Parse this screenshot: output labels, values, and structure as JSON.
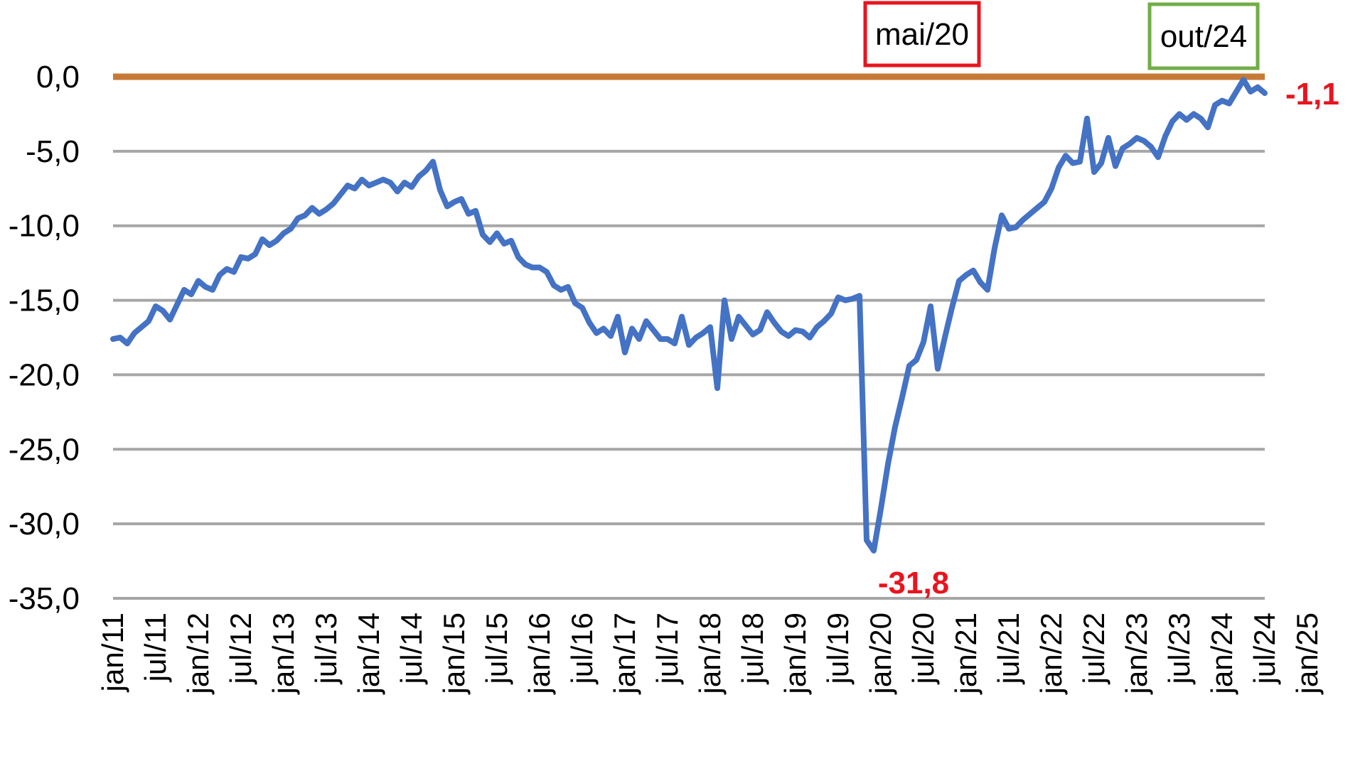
{
  "chart_data": {
    "type": "line",
    "title": "",
    "xlabel": "",
    "ylabel": "",
    "ylim": [
      -35,
      0
    ],
    "yticks": [
      "0,0",
      "-5,0",
      "-10,0",
      "-15,0",
      "-20,0",
      "-25,0",
      "-30,0",
      "-35,0"
    ],
    "ytick_values": [
      0,
      -5,
      -10,
      -15,
      -20,
      -25,
      -30,
      -35
    ],
    "xticks": [
      "jan/11",
      "jul/11",
      "jan/12",
      "jul/12",
      "jan/13",
      "jul/13",
      "jan/14",
      "jul/14",
      "jan/15",
      "jul/15",
      "jan/16",
      "jul/16",
      "jan/17",
      "jul/17",
      "jan/18",
      "jul/18",
      "jan/19",
      "jul/19",
      "jan/20",
      "jul/20",
      "jan/21",
      "jul/21",
      "jan/22",
      "jul/22",
      "jan/23",
      "jul/23",
      "jan/24",
      "jul/24",
      "jan/25"
    ],
    "grid": true,
    "start_period": "jan/11",
    "frequency": "monthly",
    "reference_line": {
      "value": 0,
      "color": "#c67a35"
    },
    "series": [
      {
        "name": "",
        "color": "#4472c4",
        "values": [
          -17.6,
          -17.5,
          -17.9,
          -17.2,
          -16.8,
          -16.4,
          -15.4,
          -15.7,
          -16.3,
          -15.3,
          -14.3,
          -14.6,
          -13.7,
          -14.1,
          -14.3,
          -13.3,
          -12.9,
          -13.1,
          -12.1,
          -12.2,
          -11.9,
          -10.9,
          -11.3,
          -11.0,
          -10.5,
          -10.2,
          -9.5,
          -9.3,
          -8.8,
          -9.2,
          -8.9,
          -8.5,
          -7.9,
          -7.3,
          -7.5,
          -6.9,
          -7.3,
          -7.1,
          -6.9,
          -7.1,
          -7.7,
          -7.1,
          -7.4,
          -6.7,
          -6.3,
          -5.7,
          -7.6,
          -8.7,
          -8.4,
          -8.2,
          -9.2,
          -9.0,
          -10.6,
          -11.1,
          -10.5,
          -11.2,
          -11.0,
          -12.1,
          -12.6,
          -12.8,
          -12.8,
          -13.1,
          -14.0,
          -14.3,
          -14.1,
          -15.2,
          -15.5,
          -16.5,
          -17.2,
          -16.9,
          -17.4,
          -16.1,
          -18.5,
          -16.9,
          -17.6,
          -16.4,
          -17.0,
          -17.6,
          -17.6,
          -17.9,
          -16.1,
          -18.0,
          -17.5,
          -17.2,
          -16.8,
          -20.9,
          -15.0,
          -17.6,
          -16.1,
          -16.7,
          -17.3,
          -17.0,
          -15.8,
          -16.5,
          -17.1,
          -17.4,
          -17.0,
          -17.1,
          -17.5,
          -16.8,
          -16.4,
          -15.9,
          -14.8,
          -15.0,
          -14.9,
          -14.7,
          -31.1,
          -31.8,
          -29.0,
          -26.0,
          -23.5,
          -21.5,
          -19.4,
          -19.0,
          -17.8,
          -15.4,
          -19.6,
          -17.5,
          -15.5,
          -13.7,
          -13.3,
          -13.0,
          -13.8,
          -14.3,
          -11.5,
          -9.3,
          -10.2,
          -10.1,
          -9.6,
          -9.2,
          -8.8,
          -8.4,
          -7.5,
          -6.1,
          -5.3,
          -5.8,
          -5.7,
          -2.8,
          -6.4,
          -5.8,
          -4.1,
          -6.0,
          -4.8,
          -4.5,
          -4.1,
          -4.3,
          -4.7,
          -5.4,
          -4.0,
          -3.0,
          -2.5,
          -2.9,
          -2.5,
          -2.8,
          -3.4,
          -1.9,
          -1.6,
          -1.8,
          -1.0,
          -0.2,
          -1.0,
          -0.7,
          -1.1
        ]
      }
    ],
    "annotations": [
      {
        "label": "mai/20",
        "box_color": "#e8141e"
      },
      {
        "label": "out/24",
        "box_color": "#70ad47"
      }
    ],
    "value_labels": [
      {
        "text": "-31,8",
        "color": "#e8141e"
      },
      {
        "text": "-1,1",
        "color": "#e8141e"
      }
    ]
  }
}
